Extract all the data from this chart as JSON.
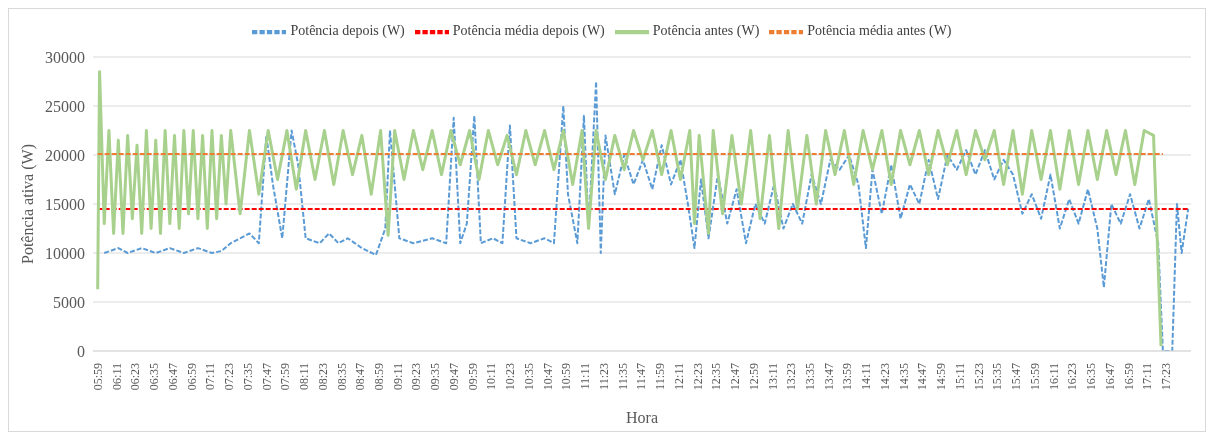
{
  "chart_data": {
    "type": "line",
    "xlabel": "Hora",
    "ylabel": "Potência ativa (W)",
    "legend": "top",
    "grid": "y",
    "marker": "none",
    "xlim": [
      5.93,
      17.65
    ],
    "ylim": [
      0,
      30000
    ],
    "yticks": [
      0,
      5000,
      10000,
      15000,
      20000,
      25000,
      30000
    ],
    "xticks": [
      {
        "value": 5.983,
        "label": "05:59"
      },
      {
        "value": 6.183,
        "label": "06:11"
      },
      {
        "value": 6.383,
        "label": "06:23"
      },
      {
        "value": 6.583,
        "label": "06:35"
      },
      {
        "value": 6.783,
        "label": "06:47"
      },
      {
        "value": 6.983,
        "label": "06:59"
      },
      {
        "value": 7.183,
        "label": "07:11"
      },
      {
        "value": 7.383,
        "label": "07:23"
      },
      {
        "value": 7.583,
        "label": "07:35"
      },
      {
        "value": 7.783,
        "label": "07:47"
      },
      {
        "value": 7.983,
        "label": "07:59"
      },
      {
        "value": 8.183,
        "label": "08:11"
      },
      {
        "value": 8.383,
        "label": "08:23"
      },
      {
        "value": 8.583,
        "label": "08:35"
      },
      {
        "value": 8.783,
        "label": "08:47"
      },
      {
        "value": 8.983,
        "label": "08:59"
      },
      {
        "value": 9.183,
        "label": "09:11"
      },
      {
        "value": 9.383,
        "label": "09:23"
      },
      {
        "value": 9.583,
        "label": "09:35"
      },
      {
        "value": 9.783,
        "label": "09:47"
      },
      {
        "value": 9.983,
        "label": "09:59"
      },
      {
        "value": 10.183,
        "label": "10:11"
      },
      {
        "value": 10.383,
        "label": "10:23"
      },
      {
        "value": 10.583,
        "label": "10:35"
      },
      {
        "value": 10.783,
        "label": "10:47"
      },
      {
        "value": 10.983,
        "label": "10:59"
      },
      {
        "value": 11.183,
        "label": "11:11"
      },
      {
        "value": 11.383,
        "label": "11:23"
      },
      {
        "value": 11.583,
        "label": "11:35"
      },
      {
        "value": 11.783,
        "label": "11:47"
      },
      {
        "value": 11.983,
        "label": "11:59"
      },
      {
        "value": 12.183,
        "label": "12:11"
      },
      {
        "value": 12.383,
        "label": "12:23"
      },
      {
        "value": 12.583,
        "label": "12:35"
      },
      {
        "value": 12.783,
        "label": "12:47"
      },
      {
        "value": 12.983,
        "label": "12:59"
      },
      {
        "value": 13.183,
        "label": "13:11"
      },
      {
        "value": 13.383,
        "label": "13:23"
      },
      {
        "value": 13.583,
        "label": "13:35"
      },
      {
        "value": 13.783,
        "label": "13:47"
      },
      {
        "value": 13.983,
        "label": "13:59"
      },
      {
        "value": 14.183,
        "label": "14:11"
      },
      {
        "value": 14.383,
        "label": "14:23"
      },
      {
        "value": 14.583,
        "label": "14:35"
      },
      {
        "value": 14.783,
        "label": "14:47"
      },
      {
        "value": 14.983,
        "label": "14:59"
      },
      {
        "value": 15.183,
        "label": "15:11"
      },
      {
        "value": 15.383,
        "label": "15:23"
      },
      {
        "value": 15.583,
        "label": "15:35"
      },
      {
        "value": 15.783,
        "label": "15:47"
      },
      {
        "value": 15.983,
        "label": "15:59"
      },
      {
        "value": 16.183,
        "label": "16:11"
      },
      {
        "value": 16.383,
        "label": "16:23"
      },
      {
        "value": 16.583,
        "label": "16:35"
      },
      {
        "value": 16.783,
        "label": "16:47"
      },
      {
        "value": 16.983,
        "label": "16:59"
      },
      {
        "value": 17.183,
        "label": "17:11"
      },
      {
        "value": 17.383,
        "label": "17:23"
      }
    ],
    "series": [
      {
        "name": "Potência depois (W)",
        "color": "#5b9bd5",
        "line_style": "dashed",
        "x": [
          6.05,
          6.2,
          6.3,
          6.45,
          6.6,
          6.75,
          6.9,
          7.05,
          7.2,
          7.3,
          7.4,
          7.5,
          7.6,
          7.7,
          7.78,
          7.85,
          7.95,
          8.05,
          8.12,
          8.2,
          8.35,
          8.45,
          8.55,
          8.65,
          8.8,
          8.95,
          9.05,
          9.1,
          9.2,
          9.35,
          9.55,
          9.7,
          9.78,
          9.85,
          9.92,
          10.0,
          10.07,
          10.2,
          10.3,
          10.38,
          10.45,
          10.6,
          10.75,
          10.85,
          10.95,
          11.0,
          11.1,
          11.17,
          11.22,
          11.3,
          11.35,
          11.4,
          11.5,
          11.6,
          11.7,
          11.8,
          11.9,
          12.0,
          12.1,
          12.2,
          12.28,
          12.35,
          12.42,
          12.5,
          12.6,
          12.7,
          12.8,
          12.9,
          13.0,
          13.1,
          13.2,
          13.3,
          13.4,
          13.5,
          13.6,
          13.7,
          13.8,
          13.9,
          14.0,
          14.1,
          14.18,
          14.25,
          14.35,
          14.45,
          14.55,
          14.65,
          14.75,
          14.85,
          14.95,
          15.05,
          15.15,
          15.25,
          15.35,
          15.45,
          15.55,
          15.65,
          15.75,
          15.85,
          15.95,
          16.05,
          16.15,
          16.25,
          16.35,
          16.45,
          16.55,
          16.65,
          16.72,
          16.8,
          16.9,
          17.0,
          17.1,
          17.2,
          17.3,
          17.35,
          17.45,
          17.5,
          17.55,
          17.62
        ],
        "values": [
          10000,
          10500,
          10000,
          10500,
          10000,
          10500,
          10000,
          10500,
          10000,
          10200,
          11000,
          11500,
          12000,
          11000,
          22000,
          17000,
          11500,
          22500,
          19000,
          11500,
          11000,
          12000,
          11000,
          11500,
          10500,
          9800,
          12500,
          22500,
          11500,
          11000,
          11500,
          11000,
          23800,
          11000,
          13000,
          24000,
          11000,
          11500,
          11000,
          23000,
          11500,
          11000,
          11500,
          11000,
          25000,
          16000,
          11000,
          24000,
          12500,
          27500,
          10000,
          22000,
          16000,
          20000,
          17000,
          19500,
          16500,
          21000,
          17000,
          19500,
          15000,
          10500,
          17500,
          11500,
          18000,
          13000,
          16500,
          11000,
          15000,
          13000,
          17000,
          12500,
          15000,
          13000,
          18000,
          15000,
          19500,
          18500,
          20000,
          17000,
          10500,
          18500,
          14000,
          19000,
          13500,
          17000,
          15000,
          19500,
          15500,
          20000,
          18500,
          20500,
          18000,
          20500,
          17500,
          19500,
          18000,
          14000,
          16000,
          13500,
          18000,
          12500,
          15500,
          13000,
          16500,
          12500,
          6500,
          15000,
          13000,
          16000,
          12500,
          15500,
          11000,
          0,
          0,
          15000,
          10000,
          14500
        ]
      },
      {
        "name": "Potência média depois (W)",
        "color": "#ff0000",
        "line_style": "dashed",
        "x": [
          5.98,
          17.62
        ],
        "values": [
          14500,
          14500
        ]
      },
      {
        "name": "Potência antes (W)",
        "color": "#a9d18e",
        "line_style": "solid",
        "x": [
          5.98,
          6.0,
          6.05,
          6.1,
          6.15,
          6.2,
          6.25,
          6.3,
          6.35,
          6.4,
          6.45,
          6.5,
          6.55,
          6.6,
          6.65,
          6.7,
          6.75,
          6.8,
          6.85,
          6.9,
          6.95,
          7.0,
          7.05,
          7.1,
          7.15,
          7.2,
          7.25,
          7.3,
          7.35,
          7.4,
          7.5,
          7.6,
          7.7,
          7.8,
          7.9,
          8.0,
          8.1,
          8.2,
          8.3,
          8.4,
          8.5,
          8.6,
          8.7,
          8.8,
          8.9,
          9.0,
          9.08,
          9.15,
          9.25,
          9.35,
          9.45,
          9.55,
          9.65,
          9.75,
          9.85,
          9.95,
          10.05,
          10.15,
          10.25,
          10.35,
          10.45,
          10.55,
          10.65,
          10.75,
          10.85,
          10.95,
          11.05,
          11.15,
          11.22,
          11.3,
          11.4,
          11.5,
          11.6,
          11.7,
          11.8,
          11.9,
          12.0,
          12.1,
          12.2,
          12.3,
          12.35,
          12.4,
          12.5,
          12.55,
          12.65,
          12.75,
          12.85,
          12.95,
          13.05,
          13.15,
          13.25,
          13.35,
          13.45,
          13.55,
          13.65,
          13.75,
          13.85,
          13.95,
          14.05,
          14.15,
          14.25,
          14.35,
          14.45,
          14.55,
          14.65,
          14.75,
          14.85,
          14.95,
          15.05,
          15.15,
          15.25,
          15.35,
          15.45,
          15.55,
          15.65,
          15.75,
          15.85,
          15.95,
          16.05,
          16.15,
          16.25,
          16.35,
          16.45,
          16.55,
          16.65,
          16.75,
          16.85,
          16.95,
          17.05,
          17.15,
          17.25,
          17.33
        ],
        "values": [
          6300,
          28500,
          13000,
          22500,
          12000,
          21500,
          12000,
          22000,
          13500,
          21000,
          12000,
          22500,
          12500,
          21500,
          12000,
          22500,
          13000,
          22000,
          12500,
          22500,
          14000,
          22500,
          13500,
          22000,
          12500,
          22500,
          13500,
          22000,
          15000,
          22500,
          14000,
          22500,
          16000,
          22500,
          17500,
          22500,
          16500,
          22500,
          17500,
          22500,
          17000,
          22500,
          18000,
          22000,
          16000,
          22500,
          11800,
          22500,
          17500,
          22500,
          18500,
          22500,
          18000,
          22500,
          19000,
          22500,
          17500,
          22500,
          19000,
          22000,
          18000,
          22500,
          19000,
          22500,
          18500,
          22500,
          17000,
          22500,
          12500,
          22500,
          17500,
          22000,
          18500,
          22500,
          19500,
          22500,
          18000,
          22500,
          17500,
          22500,
          13000,
          22000,
          12000,
          22500,
          14000,
          22000,
          15000,
          22500,
          13500,
          22000,
          12500,
          22500,
          14500,
          22000,
          15000,
          22500,
          18000,
          22500,
          17000,
          22500,
          18500,
          22500,
          17000,
          22500,
          19000,
          22500,
          18000,
          22500,
          19000,
          22500,
          18000,
          22500,
          19500,
          22500,
          17000,
          22500,
          16000,
          22500,
          17500,
          22500,
          16500,
          22500,
          17000,
          22500,
          17500,
          22500,
          18000,
          22500,
          17000,
          22500,
          22000,
          500
        ]
      },
      {
        "name": "Potência média antes (W)",
        "color": "#ed7d31",
        "line_style": "dashed",
        "x": [
          5.98,
          17.35
        ],
        "values": [
          20100,
          20100
        ]
      }
    ]
  }
}
